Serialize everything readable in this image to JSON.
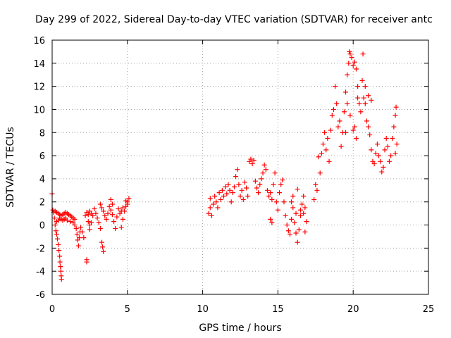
{
  "chart_data": {
    "type": "scatter",
    "title": "Day 299 of 2022, Sidereal Day-to-day VTEC variation (SDTVAR) for receiver antc",
    "xlabel": "GPS time / hours",
    "ylabel": "SDTVAR / TECUs",
    "xlim": [
      0,
      25
    ],
    "ylim": [
      -6,
      16
    ],
    "xticks": [
      0,
      5,
      10,
      15,
      20,
      25
    ],
    "yticks": [
      -6,
      -4,
      -2,
      0,
      2,
      4,
      6,
      8,
      10,
      12,
      14,
      16
    ],
    "grid": true,
    "marker": "+",
    "color": "#ff0000",
    "series": [
      {
        "name": "SDTVAR",
        "points": [
          [
            0.0,
            2.7
          ],
          [
            0.05,
            1.3
          ],
          [
            0.1,
            1.1
          ],
          [
            0.15,
            0.6
          ],
          [
            0.2,
            0.0
          ],
          [
            0.25,
            -0.5
          ],
          [
            0.3,
            -0.8
          ],
          [
            0.35,
            -1.2
          ],
          [
            0.4,
            -1.7
          ],
          [
            0.45,
            -2.2
          ],
          [
            0.5,
            -2.7
          ],
          [
            0.52,
            -3.2
          ],
          [
            0.55,
            -3.6
          ],
          [
            0.58,
            -4.0
          ],
          [
            0.6,
            -4.4
          ],
          [
            0.62,
            -4.7
          ],
          [
            0.2,
            1.2
          ],
          [
            0.3,
            1.1
          ],
          [
            0.4,
            1.0
          ],
          [
            0.5,
            0.9
          ],
          [
            0.6,
            0.8
          ],
          [
            0.7,
            0.9
          ],
          [
            0.8,
            1.0
          ],
          [
            0.9,
            1.1
          ],
          [
            1.0,
            1.0
          ],
          [
            1.1,
            0.9
          ],
          [
            1.2,
            0.8
          ],
          [
            1.3,
            0.7
          ],
          [
            1.4,
            0.6
          ],
          [
            1.5,
            0.5
          ],
          [
            0.3,
            0.3
          ],
          [
            0.4,
            0.4
          ],
          [
            0.5,
            0.6
          ],
          [
            0.6,
            0.5
          ],
          [
            0.7,
            0.4
          ],
          [
            0.8,
            0.5
          ],
          [
            0.9,
            0.6
          ],
          [
            1.0,
            0.4
          ],
          [
            1.2,
            0.3
          ],
          [
            1.4,
            0.2
          ],
          [
            1.5,
            0.0
          ],
          [
            1.6,
            -0.3
          ],
          [
            1.65,
            -0.8
          ],
          [
            1.7,
            -1.3
          ],
          [
            1.75,
            -1.8
          ],
          [
            1.8,
            -1.1
          ],
          [
            1.85,
            -0.6
          ],
          [
            1.9,
            -0.2
          ],
          [
            2.0,
            -0.6
          ],
          [
            2.1,
            -1.1
          ],
          [
            2.2,
            0.8
          ],
          [
            2.3,
            1.1
          ],
          [
            2.4,
            0.9
          ],
          [
            2.5,
            1.2
          ],
          [
            2.6,
            1.0
          ],
          [
            2.7,
            0.8
          ],
          [
            2.6,
            0.2
          ],
          [
            2.5,
            0.0
          ],
          [
            2.3,
            -3.2
          ],
          [
            2.3,
            -3.0
          ],
          [
            2.4,
            0.3
          ],
          [
            2.5,
            -0.4
          ],
          [
            2.8,
            1.4
          ],
          [
            2.9,
            1.0
          ],
          [
            3.0,
            0.6
          ],
          [
            3.1,
            0.2
          ],
          [
            3.2,
            -0.3
          ],
          [
            3.3,
            -1.5
          ],
          [
            3.35,
            -1.9
          ],
          [
            3.4,
            -2.3
          ],
          [
            3.2,
            1.8
          ],
          [
            3.3,
            1.5
          ],
          [
            3.4,
            1.2
          ],
          [
            3.5,
            0.8
          ],
          [
            3.6,
            0.5
          ],
          [
            3.7,
            1.0
          ],
          [
            3.8,
            1.6
          ],
          [
            3.9,
            1.3
          ],
          [
            4.0,
            0.9
          ],
          [
            4.1,
            0.3
          ],
          [
            4.2,
            -0.3
          ],
          [
            4.3,
            0.7
          ],
          [
            4.4,
            1.4
          ],
          [
            4.5,
            1.0
          ],
          [
            4.6,
            -0.2
          ],
          [
            4.7,
            0.5
          ],
          [
            4.8,
            1.2
          ],
          [
            4.9,
            1.6
          ],
          [
            5.0,
            2.0
          ],
          [
            5.1,
            2.3
          ],
          [
            3.9,
            2.2
          ],
          [
            4.0,
            1.8
          ],
          [
            4.6,
            1.2
          ],
          [
            4.7,
            1.5
          ],
          [
            4.9,
            2.1
          ],
          [
            5.0,
            1.8
          ],
          [
            10.4,
            1.0
          ],
          [
            10.5,
            2.3
          ],
          [
            10.5,
            1.5
          ],
          [
            10.6,
            0.8
          ],
          [
            10.7,
            1.8
          ],
          [
            10.8,
            2.5
          ],
          [
            10.9,
            2.0
          ],
          [
            11.0,
            1.5
          ],
          [
            11.1,
            2.8
          ],
          [
            11.2,
            2.2
          ],
          [
            11.3,
            3.0
          ],
          [
            11.4,
            2.5
          ],
          [
            11.5,
            3.3
          ],
          [
            11.6,
            2.7
          ],
          [
            11.7,
            3.5
          ],
          [
            11.8,
            3.0
          ],
          [
            11.9,
            2.0
          ],
          [
            12.0,
            2.8
          ],
          [
            12.1,
            3.3
          ],
          [
            12.2,
            4.2
          ],
          [
            12.3,
            4.8
          ],
          [
            12.4,
            3.5
          ],
          [
            12.5,
            2.5
          ],
          [
            12.6,
            3.0
          ],
          [
            12.7,
            2.2
          ],
          [
            12.8,
            3.7
          ],
          [
            12.9,
            3.2
          ],
          [
            13.0,
            2.5
          ],
          [
            13.1,
            5.5
          ],
          [
            13.2,
            5.7
          ],
          [
            13.3,
            5.3
          ],
          [
            13.4,
            5.6
          ],
          [
            13.5,
            3.8
          ],
          [
            13.6,
            3.2
          ],
          [
            13.7,
            2.8
          ],
          [
            13.8,
            3.5
          ],
          [
            13.9,
            4.0
          ],
          [
            14.0,
            4.5
          ],
          [
            14.1,
            5.2
          ],
          [
            14.2,
            4.8
          ],
          [
            14.3,
            3.0
          ],
          [
            14.4,
            2.5
          ],
          [
            14.5,
            2.8
          ],
          [
            14.6,
            2.2
          ],
          [
            14.7,
            3.5
          ],
          [
            14.8,
            4.5
          ],
          [
            14.9,
            2.0
          ],
          [
            15.0,
            1.3
          ],
          [
            14.5,
            0.5
          ],
          [
            14.6,
            0.2
          ],
          [
            15.1,
            2.8
          ],
          [
            15.2,
            3.5
          ],
          [
            15.3,
            3.9
          ],
          [
            15.4,
            2.0
          ],
          [
            15.5,
            0.8
          ],
          [
            15.6,
            0.0
          ],
          [
            15.7,
            -0.5
          ],
          [
            15.8,
            -0.8
          ],
          [
            15.9,
            0.5
          ],
          [
            16.0,
            1.5
          ],
          [
            16.1,
            0.2
          ],
          [
            16.2,
            -0.7
          ],
          [
            16.3,
            -1.5
          ],
          [
            16.4,
            -0.4
          ],
          [
            16.5,
            0.8
          ],
          [
            16.6,
            1.8
          ],
          [
            16.7,
            1.0
          ],
          [
            16.8,
            -0.6
          ],
          [
            16.9,
            0.3
          ],
          [
            16.3,
            3.1
          ],
          [
            15.9,
            2.0
          ],
          [
            16.0,
            2.5
          ],
          [
            16.2,
            1.0
          ],
          [
            16.5,
            1.3
          ],
          [
            16.7,
            2.5
          ],
          [
            16.8,
            1.5
          ],
          [
            17.4,
            2.2
          ],
          [
            17.5,
            3.5
          ],
          [
            17.6,
            3.0
          ],
          [
            17.7,
            5.9
          ],
          [
            17.8,
            4.5
          ],
          [
            17.9,
            6.2
          ],
          [
            18.0,
            7.0
          ],
          [
            18.1,
            8.0
          ],
          [
            18.2,
            6.5
          ],
          [
            18.3,
            7.5
          ],
          [
            18.4,
            5.5
          ],
          [
            18.5,
            8.2
          ],
          [
            18.6,
            9.5
          ],
          [
            18.7,
            10.0
          ],
          [
            18.8,
            12.0
          ],
          [
            18.9,
            10.5
          ],
          [
            19.0,
            8.5
          ],
          [
            19.1,
            9.0
          ],
          [
            19.2,
            6.8
          ],
          [
            19.3,
            8.0
          ],
          [
            19.4,
            9.8
          ],
          [
            19.5,
            11.5
          ],
          [
            19.6,
            13.0
          ],
          [
            19.7,
            14.0
          ],
          [
            19.75,
            15.0
          ],
          [
            19.8,
            14.8
          ],
          [
            19.9,
            14.5
          ],
          [
            20.0,
            13.8
          ],
          [
            20.1,
            14.1
          ],
          [
            20.2,
            13.5
          ],
          [
            20.3,
            12.0
          ],
          [
            20.4,
            10.5
          ],
          [
            20.5,
            9.8
          ],
          [
            20.6,
            12.5
          ],
          [
            20.65,
            14.8
          ],
          [
            20.7,
            11.0
          ],
          [
            20.8,
            10.5
          ],
          [
            20.9,
            9.0
          ],
          [
            21.0,
            8.5
          ],
          [
            21.1,
            7.8
          ],
          [
            21.2,
            6.5
          ],
          [
            21.3,
            5.5
          ],
          [
            21.4,
            5.3
          ],
          [
            21.5,
            6.2
          ],
          [
            21.6,
            7.0
          ],
          [
            21.7,
            6.0
          ],
          [
            21.8,
            5.5
          ],
          [
            21.9,
            4.6
          ],
          [
            22.0,
            5.0
          ],
          [
            22.1,
            6.5
          ],
          [
            22.2,
            7.5
          ],
          [
            22.3,
            6.8
          ],
          [
            22.4,
            5.5
          ],
          [
            22.5,
            6.0
          ],
          [
            22.6,
            7.5
          ],
          [
            22.7,
            8.5
          ],
          [
            22.8,
            9.5
          ],
          [
            22.85,
            10.2
          ],
          [
            22.9,
            7.0
          ],
          [
            22.8,
            6.2
          ],
          [
            19.5,
            8.0
          ],
          [
            19.8,
            9.5
          ],
          [
            20.0,
            8.2
          ],
          [
            20.2,
            7.5
          ],
          [
            19.6,
            10.5
          ],
          [
            20.3,
            11.0
          ],
          [
            20.8,
            12.0
          ],
          [
            21.0,
            11.2
          ],
          [
            21.2,
            10.8
          ],
          [
            20.1,
            8.5
          ]
        ]
      }
    ]
  }
}
